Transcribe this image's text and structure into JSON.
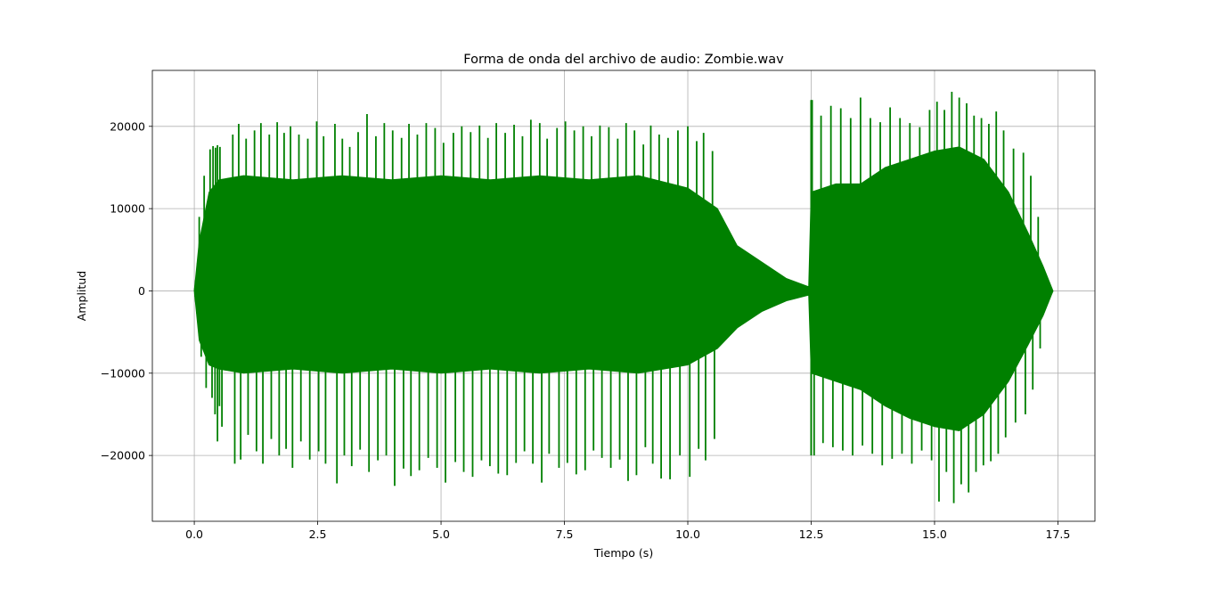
{
  "chart_data": {
    "type": "line",
    "title": "Forma de onda del archivo de audio: Zombie.wav",
    "xlabel": "Tiempo (s)",
    "ylabel": "Amplitud",
    "xlim": [
      -0.85,
      18.25
    ],
    "ylim": [
      -28000,
      26800
    ],
    "grid": true,
    "legend": "none",
    "line_color": "#008000",
    "xticks": [
      0.0,
      2.5,
      5.0,
      7.5,
      10.0,
      12.5,
      15.0,
      17.5
    ],
    "xtick_labels": [
      "0.0",
      "2.5",
      "5.0",
      "7.5",
      "10.0",
      "12.5",
      "15.0",
      "17.5"
    ],
    "yticks": [
      -20000,
      -10000,
      0,
      10000,
      20000
    ],
    "ytick_labels": [
      "−20000",
      "−10000",
      "0",
      "10000",
      "20000"
    ],
    "series": [
      {
        "envelope_x": [
          0.0,
          0.1,
          0.3,
          0.5,
          1.0,
          2.0,
          3.0,
          4.0,
          5.0,
          6.0,
          7.0,
          8.0,
          9.0,
          10.0,
          10.6,
          11.0,
          11.5,
          12.0,
          12.45,
          12.5,
          13.0,
          13.5,
          14.0,
          14.5,
          15.0,
          15.5,
          16.0,
          16.5,
          16.9,
          17.2,
          17.4
        ],
        "envelope_top": [
          0,
          6000,
          12000,
          13500,
          14000,
          13500,
          14000,
          13500,
          14000,
          13500,
          14000,
          13500,
          14000,
          12500,
          10000,
          5500,
          3500,
          1500,
          500,
          12000,
          13000,
          13000,
          15000,
          16000,
          17000,
          17500,
          16000,
          12000,
          7000,
          3000,
          0
        ],
        "envelope_bottom": [
          0,
          -6000,
          -9000,
          -9500,
          -10000,
          -9500,
          -10000,
          -9500,
          -10000,
          -9500,
          -10000,
          -9500,
          -10000,
          -9000,
          -7000,
          -4500,
          -2500,
          -1200,
          -500,
          -10000,
          -11000,
          -12000,
          -14000,
          -15500,
          -16500,
          -17000,
          -15000,
          -11000,
          -6500,
          -3000,
          0
        ],
        "peaks_x": [
          0.1,
          0.2,
          0.32,
          0.38,
          0.43,
          0.47,
          0.52,
          0.78,
          0.9,
          1.05,
          1.22,
          1.35,
          1.52,
          1.68,
          1.82,
          1.95,
          2.12,
          2.3,
          2.48,
          2.62,
          2.85,
          3.0,
          3.15,
          3.32,
          3.5,
          3.68,
          3.85,
          4.02,
          4.2,
          4.35,
          4.52,
          4.7,
          4.88,
          5.05,
          5.25,
          5.42,
          5.6,
          5.78,
          5.95,
          6.12,
          6.3,
          6.48,
          6.65,
          6.82,
          7.0,
          7.15,
          7.35,
          7.52,
          7.7,
          7.88,
          8.05,
          8.22,
          8.4,
          8.58,
          8.75,
          8.92,
          9.1,
          9.25,
          9.42,
          9.6,
          9.8,
          10.0,
          10.18,
          10.32,
          10.5,
          12.52,
          12.7,
          12.9,
          13.1,
          13.3,
          13.5,
          13.7,
          13.9,
          14.1,
          14.3,
          14.5,
          14.7,
          14.9,
          15.05,
          15.2,
          15.35,
          15.5,
          15.65,
          15.8,
          15.95,
          16.1,
          16.25,
          16.4,
          16.6,
          16.8,
          16.95,
          17.1
        ],
        "peaks_top": [
          9000,
          14000,
          17200,
          17600,
          17400,
          17700,
          17500,
          19000,
          20300,
          18500,
          19500,
          20400,
          19000,
          20500,
          19200,
          20000,
          19000,
          18500,
          20600,
          18800,
          20300,
          18500,
          17500,
          19300,
          21500,
          18800,
          20400,
          19500,
          18600,
          20300,
          19000,
          20400,
          19800,
          18000,
          19200,
          20000,
          19300,
          20100,
          18600,
          20400,
          19200,
          20200,
          18800,
          20800,
          20400,
          18500,
          19800,
          20600,
          19500,
          20000,
          18800,
          20100,
          19900,
          18500,
          20400,
          19500,
          17800,
          20100,
          19000,
          18600,
          19500,
          20000,
          18200,
          19200,
          17000,
          23200,
          21300,
          22500,
          22200,
          21000,
          23500,
          21000,
          20500,
          22300,
          21000,
          20400,
          19900,
          22000,
          23000,
          22000,
          24200,
          23500,
          22800,
          21300,
          21000,
          20300,
          21800,
          19500,
          17300,
          16800,
          14000,
          9000
        ],
        "peaks_bottom": [
          -8000,
          -11800,
          -13000,
          -15000,
          -18300,
          -14000,
          -16500,
          -21000,
          -20500,
          -17500,
          -19500,
          -21000,
          -18000,
          -20000,
          -19200,
          -21500,
          -18300,
          -20500,
          -19500,
          -21000,
          -23400,
          -20000,
          -21300,
          -19300,
          -22000,
          -20600,
          -20000,
          -23700,
          -21600,
          -22500,
          -21800,
          -20300,
          -21500,
          -23300,
          -20800,
          -22000,
          -22600,
          -20600,
          -21300,
          -22200,
          -22400,
          -20900,
          -19500,
          -21000,
          -23300,
          -19800,
          -21500,
          -20900,
          -22300,
          -21800,
          -19400,
          -20300,
          -21500,
          -20500,
          -23100,
          -22400,
          -19000,
          -21000,
          -22800,
          -22900,
          -20000,
          -22600,
          -19200,
          -20600,
          -18000,
          -20000,
          -18500,
          -19000,
          -19400,
          -20000,
          -18800,
          -19800,
          -21200,
          -20400,
          -19800,
          -21000,
          -19400,
          -20600,
          -25600,
          -22000,
          -25800,
          -23500,
          -24500,
          -22000,
          -21200,
          -20700,
          -19800,
          -17800,
          -16000,
          -15000,
          -12000,
          -7000
        ]
      }
    ]
  }
}
